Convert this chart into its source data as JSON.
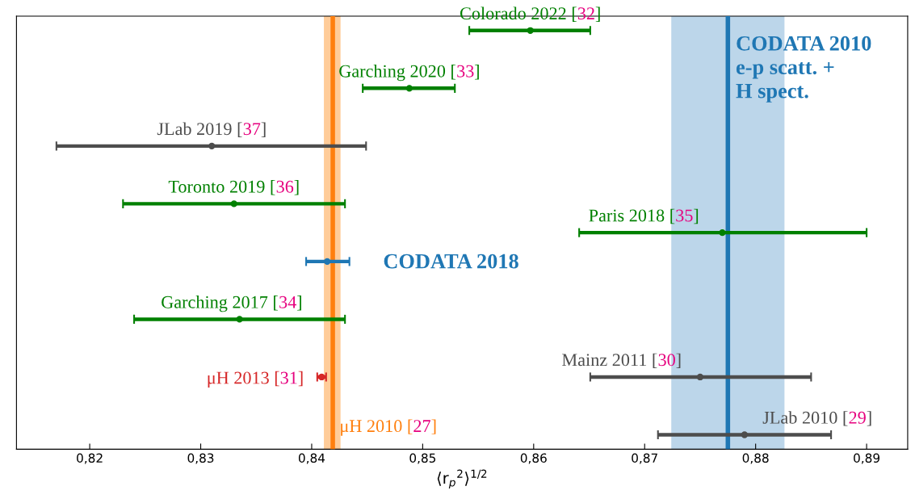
{
  "chart_data": {
    "type": "scatter",
    "orientation": "horizontal",
    "xlabel": "⟨r$_{p}$$^{2}$⟩$^{1/2}$",
    "categories": [
      null,
      null,
      null,
      null,
      null,
      null,
      null,
      null,
      null,
      null,
      null,
      null,
      null,
      null,
      null
    ],
    "xlim": [
      0.8134,
      0.8937
    ],
    "xticks": [
      {
        "value": 0.82,
        "label": "0,82"
      },
      {
        "value": 0.83,
        "label": "0,83"
      },
      {
        "value": 0.84,
        "label": "0,84"
      },
      {
        "value": 0.85,
        "label": "0,85"
      },
      {
        "value": 0.86,
        "label": "0,86"
      },
      {
        "value": 0.87,
        "label": "0,87"
      },
      {
        "value": 0.88,
        "label": "0,88"
      },
      {
        "value": 0.89,
        "label": "0,89"
      }
    ],
    "tick_labels": "x",
    "grid": false,
    "legend": false,
    "marker": "circle",
    "series": [
      {
        "name": "Colorado 2022 [32]",
        "color": "#008000",
        "values": [
          0.8597,
          null,
          null,
          null,
          null,
          null,
          null,
          null,
          null,
          null,
          null,
          null,
          null,
          null,
          null
        ],
        "errors": [
          [
            0.8542,
            0.8651
          ],
          null,
          null,
          null,
          null,
          null,
          null,
          null,
          null,
          null,
          null,
          null,
          null,
          null,
          null
        ]
      },
      {
        "name": "Garching 2020 [33]",
        "color": "#008000",
        "values": [
          null,
          null,
          0.8488,
          null,
          null,
          null,
          null,
          null,
          null,
          null,
          null,
          null,
          null,
          null,
          null
        ],
        "errors": [
          null,
          null,
          [
            0.8446,
            0.8529
          ],
          null,
          null,
          null,
          null,
          null,
          null,
          null,
          null,
          null,
          null,
          null,
          null
        ]
      },
      {
        "name": "JLab 2019 [37]",
        "color": "#4d4d4d",
        "values": [
          null,
          null,
          null,
          null,
          0.831,
          null,
          null,
          null,
          null,
          null,
          null,
          null,
          null,
          null,
          null
        ],
        "errors": [
          null,
          null,
          null,
          null,
          [
            0.817,
            0.8449
          ],
          null,
          null,
          null,
          null,
          null,
          null,
          null,
          null,
          null,
          null
        ]
      },
      {
        "name": "Toronto 2019 [36]",
        "color": "#008000",
        "values": [
          null,
          null,
          null,
          null,
          null,
          null,
          0.833,
          null,
          null,
          null,
          null,
          null,
          null,
          null,
          null
        ],
        "errors": [
          null,
          null,
          null,
          null,
          null,
          null,
          [
            0.823,
            0.843
          ],
          null,
          null,
          null,
          null,
          null,
          null,
          null,
          null
        ]
      },
      {
        "name": "Paris 2018 [35]",
        "color": "#008000",
        "values": [
          null,
          null,
          null,
          null,
          null,
          null,
          null,
          0.877,
          null,
          null,
          null,
          null,
          null,
          null,
          null
        ],
        "errors": [
          null,
          null,
          null,
          null,
          null,
          null,
          null,
          [
            0.8641,
            0.89
          ],
          null,
          null,
          null,
          null,
          null,
          null,
          null
        ]
      },
      {
        "name": "CODATA 2018",
        "color": "#1f77b4",
        "values": [
          null,
          null,
          null,
          null,
          null,
          null,
          null,
          null,
          0.8414,
          null,
          null,
          null,
          null,
          null,
          null
        ],
        "errors": [
          null,
          null,
          null,
          null,
          null,
          null,
          null,
          null,
          [
            0.8395,
            0.8434
          ],
          null,
          null,
          null,
          null,
          null,
          null
        ]
      },
      {
        "name": "Garching 2017 [34]",
        "color": "#008000",
        "values": [
          null,
          null,
          null,
          null,
          null,
          null,
          null,
          null,
          null,
          null,
          0.8335,
          null,
          null,
          null,
          null
        ],
        "errors": [
          null,
          null,
          null,
          null,
          null,
          null,
          null,
          null,
          null,
          null,
          [
            0.824,
            0.843
          ],
          null,
          null,
          null,
          null
        ]
      },
      {
        "name": "μH 2013 [31]",
        "color": "#d62728",
        "values": [
          null,
          null,
          null,
          null,
          null,
          null,
          null,
          null,
          null,
          null,
          null,
          null,
          0.8409,
          null,
          null
        ],
        "errors": [
          null,
          null,
          null,
          null,
          null,
          null,
          null,
          null,
          null,
          null,
          null,
          null,
          [
            0.8405,
            0.8413
          ],
          null,
          null
        ]
      },
      {
        "name": "Mainz 2011 [30]",
        "color": "#4d4d4d",
        "values": [
          null,
          null,
          null,
          null,
          null,
          null,
          null,
          null,
          null,
          null,
          null,
          null,
          0.875,
          null,
          null
        ],
        "errors": [
          null,
          null,
          null,
          null,
          null,
          null,
          null,
          null,
          null,
          null,
          null,
          null,
          [
            0.8651,
            0.885
          ],
          null,
          null
        ]
      },
      {
        "name": "JLab 2010 [29]",
        "color": "#4d4d4d",
        "values": [
          null,
          null,
          null,
          null,
          null,
          null,
          null,
          null,
          null,
          null,
          null,
          null,
          null,
          null,
          0.879
        ],
        "errors": [
          null,
          null,
          null,
          null,
          null,
          null,
          null,
          null,
          null,
          null,
          null,
          null,
          null,
          null,
          [
            0.8712,
            0.8868
          ]
        ]
      }
    ],
    "ref_lines": [
      {
        "axis": "x",
        "value": 0.8419,
        "label": "μH 2010 [27]",
        "color": "#ff7f0e",
        "line_style": "solid"
      },
      {
        "axis": "x",
        "value": 0.8775,
        "label": "CODATA 2010\ne-p scatt. +\nH spect.",
        "color": "#1f77b4",
        "line_style": "solid"
      }
    ],
    "bands": [
      {
        "axis": "x",
        "from": 0.8411,
        "to": 0.8426,
        "color": "#ffcc99"
      },
      {
        "axis": "x",
        "from": 0.8724,
        "to": 0.8826,
        "color": "#bcd6ea"
      }
    ]
  }
}
